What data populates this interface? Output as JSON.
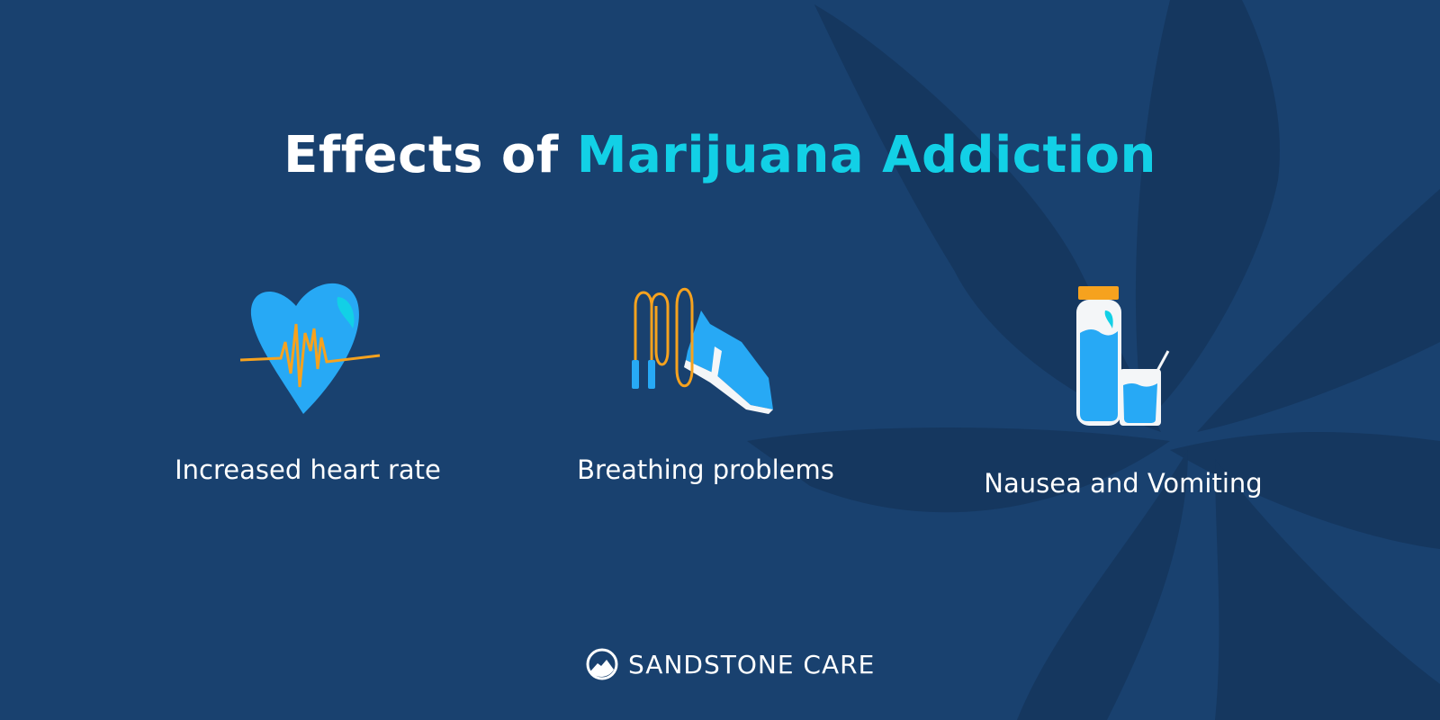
{
  "title": {
    "part1": "Effects of ",
    "highlight": "Marijuana Addiction"
  },
  "items": [
    {
      "icon": "heart-rate-icon",
      "label": "Increased heart rate"
    },
    {
      "icon": "jump-rope-sneaker-icon",
      "label": "Breathing problems"
    },
    {
      "icon": "water-bottle-glass-icon",
      "label": "Nausea and Vomiting"
    }
  ],
  "brand": {
    "name": "SANDSTONE CARE",
    "icon": "mountain-circle-logo-icon"
  },
  "colors": {
    "background": "#19416f",
    "highlight": "#12d0e6",
    "icon_blue": "#27a9f5",
    "accent_orange": "#f6a21e"
  }
}
